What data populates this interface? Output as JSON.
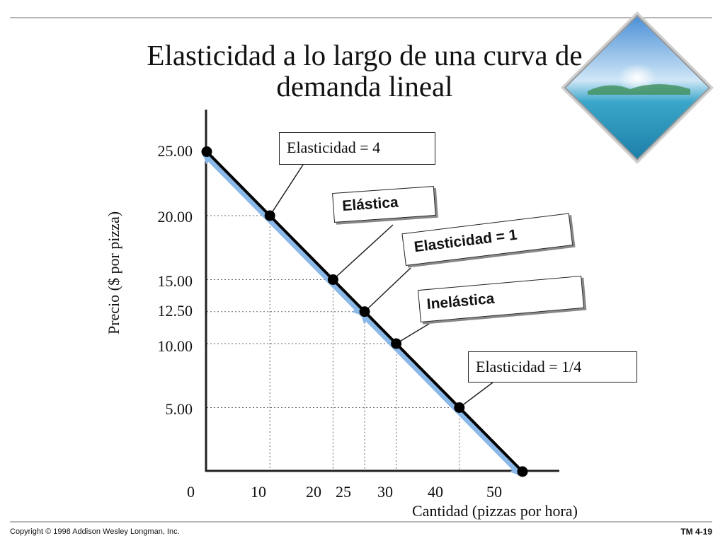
{
  "slide": {
    "title_line1": "Elasticidad a lo largo de una curva de",
    "title_line2": "demanda lineal",
    "footer_left": "Copyright © 1998 Addison Wesley Longman, Inc.",
    "footer_right": "TM 4-19"
  },
  "chart_data": {
    "type": "line",
    "title": "Elasticidad a lo largo de una curva de demanda lineal",
    "xlabel": "Cantidad (pizzas por hora)",
    "ylabel": "Precio ($ por pizza)",
    "xlim": [
      0,
      50
    ],
    "ylim": [
      0,
      25
    ],
    "x_ticks": [
      "0",
      "10",
      "20",
      "25",
      "30",
      "40",
      "50"
    ],
    "y_ticks": [
      "25.00",
      "20.00",
      "15.00",
      "12.50",
      "10.00",
      "5.00"
    ],
    "series": [
      {
        "points": [
          {
            "x": 0,
            "y": 25
          },
          {
            "x": 10,
            "y": 20
          },
          {
            "x": 20,
            "y": 15
          },
          {
            "x": 25,
            "y": 12.5
          },
          {
            "x": 30,
            "y": 10
          },
          {
            "x": 40,
            "y": 5
          },
          {
            "x": 50,
            "y": 0
          }
        ]
      }
    ],
    "annotations": [
      {
        "text": "Elasticidad  = 4",
        "x": 10,
        "y": 20,
        "style": "normal"
      },
      {
        "text": "Elástica",
        "x": 20,
        "y": 15,
        "style": "bold"
      },
      {
        "text": "Elasticidad  = 1",
        "x": 25,
        "y": 12.5,
        "style": "bold"
      },
      {
        "text": "Inelástica",
        "x": 30,
        "y": 10,
        "style": "bold"
      },
      {
        "text": "Elasticidad = 1/4",
        "x": 40,
        "y": 5,
        "style": "normal"
      }
    ],
    "colors": {
      "curve": "#000000",
      "arrows": "#8ab8e8"
    }
  }
}
